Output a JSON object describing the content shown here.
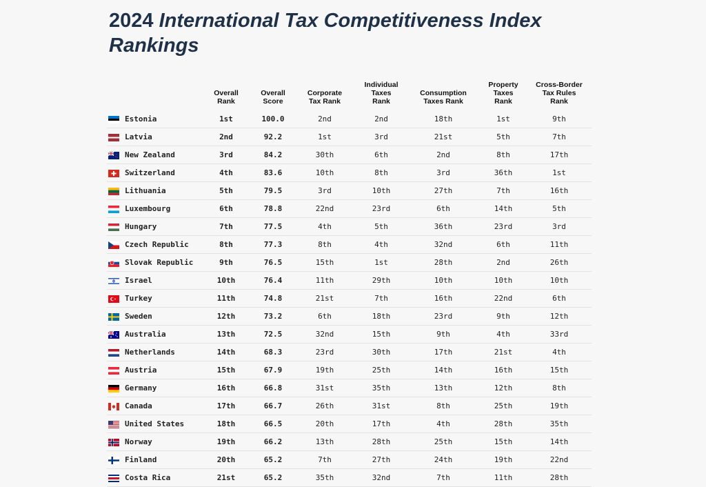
{
  "title": {
    "year": "2024",
    "rest": "International Tax Competitiveness Index Rankings"
  },
  "columns": [
    "",
    "Overall\nRank",
    "Overall\nScore",
    "Corporate\nTax Rank",
    "Individual\nTaxes\nRank",
    "Consumption\nTaxes Rank",
    "Property\nTaxes\nRank",
    "Cross-Border\nTax Rules\nRank"
  ],
  "rows": [
    {
      "country": "Estonia",
      "flag": "estonia-flag-icon",
      "cells": [
        "1st",
        "100.0",
        "2nd",
        "2nd",
        "18th",
        "1st",
        "9th"
      ]
    },
    {
      "country": "Latvia",
      "flag": "latvia-flag-icon",
      "cells": [
        "2nd",
        "92.2",
        "1st",
        "3rd",
        "21st",
        "5th",
        "7th"
      ]
    },
    {
      "country": "New Zealand",
      "flag": "new-zealand-flag-icon",
      "cells": [
        "3rd",
        "84.2",
        "30th",
        "6th",
        "2nd",
        "8th",
        "17th"
      ]
    },
    {
      "country": "Switzerland",
      "flag": "switzerland-flag-icon",
      "cells": [
        "4th",
        "83.6",
        "10th",
        "8th",
        "3rd",
        "36th",
        "1st"
      ]
    },
    {
      "country": "Lithuania",
      "flag": "lithuania-flag-icon",
      "cells": [
        "5th",
        "79.5",
        "3rd",
        "10th",
        "27th",
        "7th",
        "16th"
      ]
    },
    {
      "country": "Luxembourg",
      "flag": "luxembourg-flag-icon",
      "cells": [
        "6th",
        "78.8",
        "22nd",
        "23rd",
        "6th",
        "14th",
        "5th"
      ]
    },
    {
      "country": "Hungary",
      "flag": "hungary-flag-icon",
      "cells": [
        "7th",
        "77.5",
        "4th",
        "5th",
        "36th",
        "23rd",
        "3rd"
      ]
    },
    {
      "country": "Czech Republic",
      "flag": "czech-republic-flag-icon",
      "cells": [
        "8th",
        "77.3",
        "8th",
        "4th",
        "32nd",
        "6th",
        "11th"
      ]
    },
    {
      "country": "Slovak Republic",
      "flag": "slovak-republic-flag-icon",
      "cells": [
        "9th",
        "76.5",
        "15th",
        "1st",
        "28th",
        "2nd",
        "26th"
      ]
    },
    {
      "country": "Israel",
      "flag": "israel-flag-icon",
      "cells": [
        "10th",
        "76.4",
        "11th",
        "29th",
        "10th",
        "10th",
        "10th"
      ]
    },
    {
      "country": "Turkey",
      "flag": "turkey-flag-icon",
      "cells": [
        "11th",
        "74.8",
        "21st",
        "7th",
        "16th",
        "22nd",
        "6th"
      ]
    },
    {
      "country": "Sweden",
      "flag": "sweden-flag-icon",
      "cells": [
        "12th",
        "73.2",
        "6th",
        "18th",
        "23rd",
        "9th",
        "12th"
      ]
    },
    {
      "country": "Australia",
      "flag": "australia-flag-icon",
      "cells": [
        "13th",
        "72.5",
        "32nd",
        "15th",
        "9th",
        "4th",
        "33rd"
      ]
    },
    {
      "country": "Netherlands",
      "flag": "netherlands-flag-icon",
      "cells": [
        "14th",
        "68.3",
        "23rd",
        "30th",
        "17th",
        "21st",
        "4th"
      ]
    },
    {
      "country": "Austria",
      "flag": "austria-flag-icon",
      "cells": [
        "15th",
        "67.9",
        "19th",
        "25th",
        "14th",
        "16th",
        "15th"
      ]
    },
    {
      "country": "Germany",
      "flag": "germany-flag-icon",
      "cells": [
        "16th",
        "66.8",
        "31st",
        "35th",
        "13th",
        "12th",
        "8th"
      ]
    },
    {
      "country": "Canada",
      "flag": "canada-flag-icon",
      "cells": [
        "17th",
        "66.7",
        "26th",
        "31st",
        "8th",
        "25th",
        "19th"
      ]
    },
    {
      "country": "United States",
      "flag": "united-states-flag-icon",
      "cells": [
        "18th",
        "66.5",
        "20th",
        "17th",
        "4th",
        "28th",
        "35th"
      ]
    },
    {
      "country": "Norway",
      "flag": "norway-flag-icon",
      "cells": [
        "19th",
        "66.2",
        "13th",
        "28th",
        "25th",
        "15th",
        "14th"
      ]
    },
    {
      "country": "Finland",
      "flag": "finland-flag-icon",
      "cells": [
        "20th",
        "65.2",
        "7th",
        "27th",
        "24th",
        "19th",
        "22nd"
      ]
    },
    {
      "country": "Costa Rica",
      "flag": "costa-rica-flag-icon",
      "cells": [
        "21st",
        "65.2",
        "35th",
        "32nd",
        "7th",
        "11th",
        "28th"
      ]
    }
  ]
}
